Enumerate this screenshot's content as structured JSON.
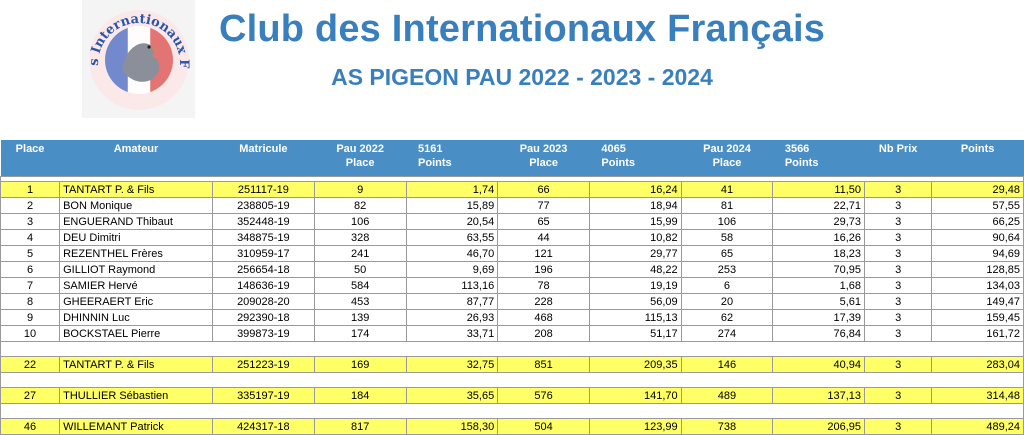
{
  "header": {
    "title": "Club des Internationaux Français",
    "subtitle": "AS PIGEON PAU 2022 - 2023 - 2024",
    "logo_text": "Club des Internationaux Français"
  },
  "colors": {
    "title": "#3a7fbd",
    "header_bg": "#4a8ec6",
    "highlight_row": "#ffff66",
    "logo_blue": "#2a55a8",
    "logo_red": "#d83a3a"
  },
  "table": {
    "headers": [
      [
        "Place"
      ],
      [
        "Amateur"
      ],
      [
        "Matricule"
      ],
      [
        "Pau 2022",
        "Place"
      ],
      [
        "5161",
        "Points"
      ],
      [
        "Pau 2023",
        "Place"
      ],
      [
        "4065",
        "Points"
      ],
      [
        "Pau 2024",
        "Place"
      ],
      [
        "3566",
        "Points"
      ],
      [
        "Nb Prix"
      ],
      [
        "Points"
      ]
    ],
    "top_rows": [
      {
        "place": "1",
        "amateur": "TANTART P. & Fils",
        "matricule": "251117-19",
        "p22": "9",
        "pt22": "1,74",
        "p23": "66",
        "pt23": "16,24",
        "p24": "41",
        "pt24": "11,50",
        "nb": "3",
        "points": "29,48",
        "highlight": true
      },
      {
        "place": "2",
        "amateur": "BON Monique",
        "matricule": "238805-19",
        "p22": "82",
        "pt22": "15,89",
        "p23": "77",
        "pt23": "18,94",
        "p24": "81",
        "pt24": "22,71",
        "nb": "3",
        "points": "57,55",
        "highlight": false
      },
      {
        "place": "3",
        "amateur": "ENGUERAND Thibaut",
        "matricule": "352448-19",
        "p22": "106",
        "pt22": "20,54",
        "p23": "65",
        "pt23": "15,99",
        "p24": "106",
        "pt24": "29,73",
        "nb": "3",
        "points": "66,25",
        "highlight": false
      },
      {
        "place": "4",
        "amateur": "DEU Dimitri",
        "matricule": "348875-19",
        "p22": "328",
        "pt22": "63,55",
        "p23": "44",
        "pt23": "10,82",
        "p24": "58",
        "pt24": "16,26",
        "nb": "3",
        "points": "90,64",
        "highlight": false
      },
      {
        "place": "5",
        "amateur": "REZENTHEL Frères",
        "matricule": "310959-17",
        "p22": "241",
        "pt22": "46,70",
        "p23": "121",
        "pt23": "29,77",
        "p24": "65",
        "pt24": "18,23",
        "nb": "3",
        "points": "94,69",
        "highlight": false
      },
      {
        "place": "6",
        "amateur": "GILLIOT Raymond",
        "matricule": "256654-18",
        "p22": "50",
        "pt22": "9,69",
        "p23": "196",
        "pt23": "48,22",
        "p24": "253",
        "pt24": "70,95",
        "nb": "3",
        "points": "128,85",
        "highlight": false
      },
      {
        "place": "7",
        "amateur": "SAMIER Hervé",
        "matricule": "148636-19",
        "p22": "584",
        "pt22": "113,16",
        "p23": "78",
        "pt23": "19,19",
        "p24": "6",
        "pt24": "1,68",
        "nb": "3",
        "points": "134,03",
        "highlight": false
      },
      {
        "place": "8",
        "amateur": "GHEERAERT Eric",
        "matricule": "209028-20",
        "p22": "453",
        "pt22": "87,77",
        "p23": "228",
        "pt23": "56,09",
        "p24": "20",
        "pt24": "5,61",
        "nb": "3",
        "points": "149,47",
        "highlight": false
      },
      {
        "place": "9",
        "amateur": "DHINNIN Luc",
        "matricule": "292390-18",
        "p22": "139",
        "pt22": "26,93",
        "p23": "468",
        "pt23": "115,13",
        "p24": "62",
        "pt24": "17,39",
        "nb": "3",
        "points": "159,45",
        "highlight": false
      },
      {
        "place": "10",
        "amateur": "BOCKSTAEL Pierre",
        "matricule": "399873-19",
        "p22": "174",
        "pt22": "33,71",
        "p23": "208",
        "pt23": "51,17",
        "p24": "274",
        "pt24": "76,84",
        "nb": "3",
        "points": "161,72",
        "highlight": false
      }
    ],
    "extra_rows": [
      {
        "place": "22",
        "amateur": "TANTART P. & Fils",
        "matricule": "251223-19",
        "p22": "169",
        "pt22": "32,75",
        "p23": "851",
        "pt23": "209,35",
        "p24": "146",
        "pt24": "40,94",
        "nb": "3",
        "points": "283,04",
        "highlight": true
      },
      {
        "place": "27",
        "amateur": "THULLIER Sébastien",
        "matricule": "335197-19",
        "p22": "184",
        "pt22": "35,65",
        "p23": "576",
        "pt23": "141,70",
        "p24": "489",
        "pt24": "137,13",
        "nb": "3",
        "points": "314,48",
        "highlight": true
      },
      {
        "place": "46",
        "amateur": "WILLEMANT Patrick",
        "matricule": "424317-18",
        "p22": "817",
        "pt22": "158,30",
        "p23": "504",
        "pt23": "123,99",
        "p24": "738",
        "pt24": "206,95",
        "nb": "3",
        "points": "489,24",
        "highlight": true
      }
    ]
  }
}
